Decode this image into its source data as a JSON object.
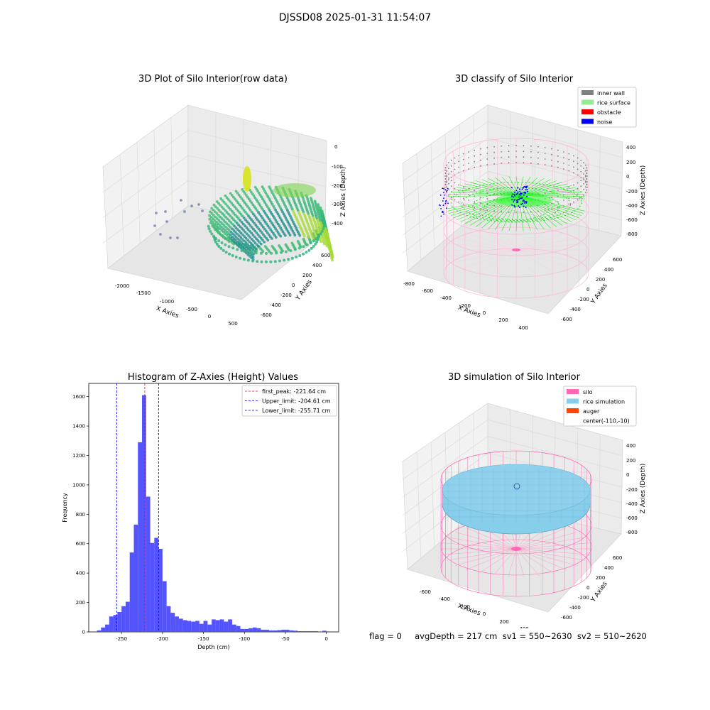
{
  "suptitle": "DJSSD08 2025-01-31 11:54:07",
  "footer": "flag = 0     avgDepth = 217 cm  sv1 = 550~2630  sv2 = 510~2620",
  "chart_data": [
    {
      "type": "scatter3d",
      "title": "3D Plot of Silo Interior(row data)",
      "xlabel": "X Axies",
      "ylabel": "Y Axies",
      "zlabel": "Z Axies (Depth)",
      "xticks": [
        "-2000",
        "-1500",
        "-1000",
        "-500",
        "0",
        "500"
      ],
      "yticks": [
        "-600",
        "-400",
        "-200",
        "0",
        "200",
        "400",
        "600"
      ],
      "zticks": [
        "0",
        "-100",
        "-200",
        "-300",
        "-400"
      ],
      "xlim": [
        -2300,
        600
      ],
      "ylim": [
        -700,
        700
      ],
      "zlim": [
        -450,
        20
      ],
      "colormap": "viridis",
      "description_points": "ring of points around center approx (-200, 0) radius ~500, depths -150 to -300"
    },
    {
      "type": "scatter3d",
      "title": "3D classify of Silo Interior",
      "xlabel": "X Axies",
      "ylabel": "Y Axies",
      "zlabel": "Z Axies (Depth)",
      "xticks": [
        "-800",
        "-600",
        "-400",
        "-200",
        "0",
        "200",
        "400"
      ],
      "yticks": [
        "-600",
        "-400",
        "-200",
        "0",
        "200",
        "400",
        "600"
      ],
      "zticks": [
        "400",
        "200",
        "0",
        "-200",
        "-400",
        "-600",
        "-800"
      ],
      "legend": [
        {
          "name": "inner wall",
          "color": "#808080"
        },
        {
          "name": "rice surface",
          "color": "#90ee90"
        },
        {
          "name": "obstacle",
          "color": "#ff0000"
        },
        {
          "name": "noise",
          "color": "#0000ff"
        }
      ],
      "legend_position": "top-right"
    },
    {
      "type": "bar",
      "title": "Histogram of Z-Axies (Height) Values",
      "xlabel": "Depth (cm)",
      "ylabel": "Frequency",
      "xlim": [
        -290,
        15
      ],
      "ylim": [
        0,
        1690
      ],
      "xticks": [
        -250,
        -200,
        -150,
        -100,
        -50,
        0
      ],
      "yticks": [
        0,
        200,
        400,
        600,
        800,
        1000,
        1200,
        1400,
        1600
      ],
      "bin_width": 5,
      "bins": [
        {
          "x": -280,
          "y": 10
        },
        {
          "x": -275,
          "y": 30
        },
        {
          "x": -270,
          "y": 50
        },
        {
          "x": -265,
          "y": 105
        },
        {
          "x": -260,
          "y": 115
        },
        {
          "x": -255,
          "y": 135
        },
        {
          "x": -250,
          "y": 175
        },
        {
          "x": -245,
          "y": 205
        },
        {
          "x": -240,
          "y": 540
        },
        {
          "x": -235,
          "y": 730
        },
        {
          "x": -230,
          "y": 1290
        },
        {
          "x": -225,
          "y": 1610
        },
        {
          "x": -220,
          "y": 920
        },
        {
          "x": -215,
          "y": 605
        },
        {
          "x": -210,
          "y": 640
        },
        {
          "x": -205,
          "y": 565
        },
        {
          "x": -200,
          "y": 345
        },
        {
          "x": -195,
          "y": 175
        },
        {
          "x": -190,
          "y": 130
        },
        {
          "x": -185,
          "y": 105
        },
        {
          "x": -180,
          "y": 90
        },
        {
          "x": -175,
          "y": 80
        },
        {
          "x": -170,
          "y": 75
        },
        {
          "x": -165,
          "y": 70
        },
        {
          "x": -160,
          "y": 75
        },
        {
          "x": -155,
          "y": 55
        },
        {
          "x": -150,
          "y": 75
        },
        {
          "x": -145,
          "y": 50
        },
        {
          "x": -140,
          "y": 85
        },
        {
          "x": -135,
          "y": 80
        },
        {
          "x": -130,
          "y": 85
        },
        {
          "x": -125,
          "y": 70
        },
        {
          "x": -120,
          "y": 85
        },
        {
          "x": -115,
          "y": 50
        },
        {
          "x": -110,
          "y": 40
        },
        {
          "x": -105,
          "y": 20
        },
        {
          "x": -100,
          "y": 20
        },
        {
          "x": -95,
          "y": 25
        },
        {
          "x": -90,
          "y": 30
        },
        {
          "x": -85,
          "y": 25
        },
        {
          "x": -80,
          "y": 15
        },
        {
          "x": -75,
          "y": 15
        },
        {
          "x": -70,
          "y": 10
        },
        {
          "x": -65,
          "y": 10
        },
        {
          "x": -60,
          "y": 12
        },
        {
          "x": -55,
          "y": 15
        },
        {
          "x": -50,
          "y": 15
        },
        {
          "x": -45,
          "y": 10
        },
        {
          "x": -40,
          "y": 8
        },
        {
          "x": -35,
          "y": 5
        },
        {
          "x": -30,
          "y": 5
        },
        {
          "x": -25,
          "y": 5
        },
        {
          "x": -20,
          "y": 5
        },
        {
          "x": -15,
          "y": 5
        },
        {
          "x": -10,
          "y": 3
        },
        {
          "x": -5,
          "y": 8
        }
      ],
      "bar_color": "#4b4bff",
      "vlines": [
        {
          "label": "first_peak: -221.64 cm",
          "x": -221.64,
          "color": "#ff0000"
        },
        {
          "label": "Upper_limit: -204.61 cm",
          "x": -204.61,
          "color": "#0000ff"
        },
        {
          "label": "Lower_limit: -255.71 cm",
          "x": -255.71,
          "color": "#0000ff"
        }
      ],
      "legend_position": "top-right"
    },
    {
      "type": "surface3d",
      "title": "3D simulation of Silo Interior",
      "xlabel": "X Axies",
      "ylabel": "Y Axies",
      "zlabel": "Z Axies (Depth)",
      "xticks": [
        "-600",
        "-400",
        "-200",
        "0",
        "200",
        "400"
      ],
      "yticks": [
        "-600",
        "-400",
        "-200",
        "0",
        "200",
        "400",
        "600"
      ],
      "zticks": [
        "400",
        "200",
        "0",
        "-200",
        "-400",
        "-600",
        "-800"
      ],
      "legend": [
        {
          "name": "silo",
          "color": "#ff69b4"
        },
        {
          "name": "rice simulation",
          "color": "#87ceeb"
        },
        {
          "name": "auger",
          "color": "#ff4500"
        },
        {
          "name": "center(-110,-10)",
          "color": ""
        }
      ],
      "legend_position": "top-right"
    }
  ]
}
